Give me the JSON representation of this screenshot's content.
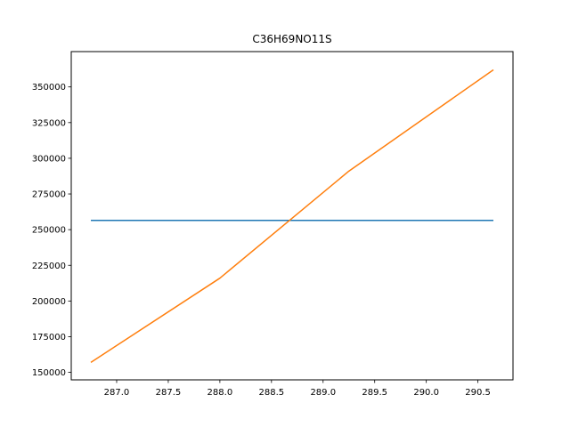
{
  "chart_data": {
    "type": "line",
    "title": "C36H69NO11S",
    "xlabel": "",
    "ylabel": "",
    "xlim": [
      286.56,
      290.84
    ],
    "ylim": [
      144750,
      374750
    ],
    "xticks": [
      287.0,
      287.5,
      288.0,
      288.5,
      289.0,
      289.5,
      290.0,
      290.5
    ],
    "xtick_labels": [
      "287.0",
      "287.5",
      "288.0",
      "288.5",
      "289.0",
      "289.5",
      "290.0",
      "290.5"
    ],
    "yticks": [
      150000,
      175000,
      200000,
      225000,
      250000,
      275000,
      300000,
      325000,
      350000
    ],
    "ytick_labels": [
      "150000",
      "175000",
      "200000",
      "225000",
      "250000",
      "275000",
      "300000",
      "325000",
      "350000"
    ],
    "grid": false,
    "series": [
      {
        "color": "#1f77b4",
        "x": [
          286.75,
          290.65
        ],
        "y": [
          256500,
          256500
        ]
      },
      {
        "color": "#ff7f0e",
        "x": [
          286.75,
          288.0,
          289.25,
          290.65
        ],
        "y": [
          157000,
          216000,
          291000,
          362000
        ]
      }
    ]
  }
}
